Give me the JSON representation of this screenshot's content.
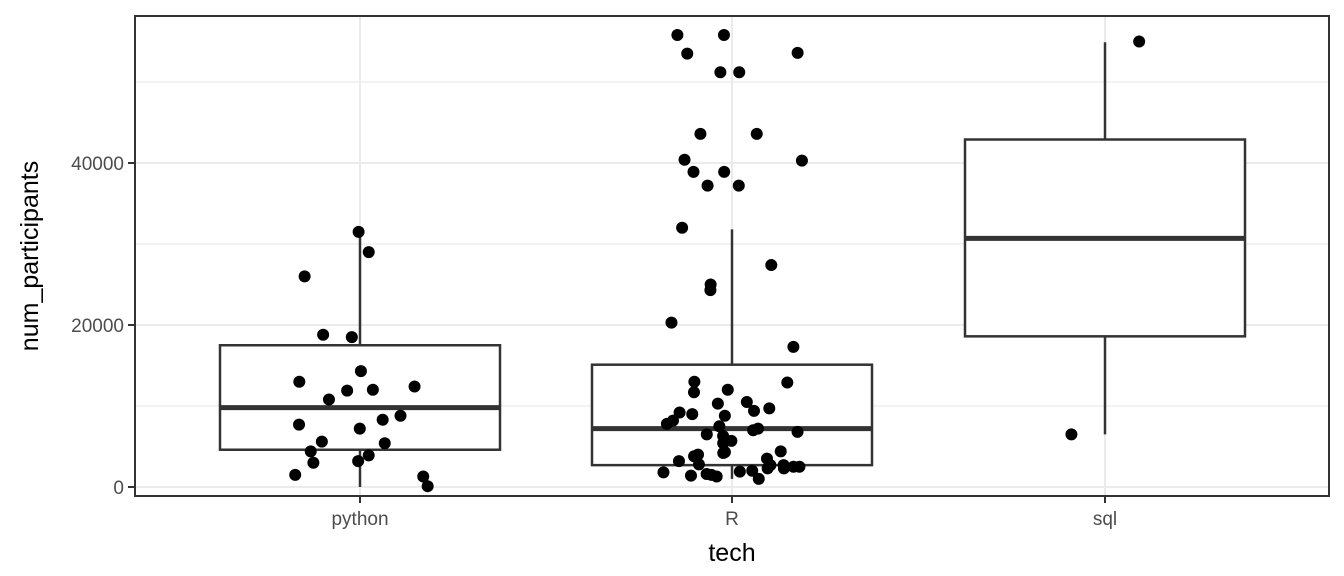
{
  "chart_data": {
    "type": "boxplot",
    "xlabel": "tech",
    "ylabel": "num_participants",
    "categories": [
      "python",
      "R",
      "sql"
    ],
    "ylim": [
      -1000,
      58000
    ],
    "yticks": [
      0,
      20000,
      40000
    ],
    "ytick_labels": [
      "0",
      "20000",
      "40000"
    ],
    "grid": true,
    "boxes": [
      {
        "category": "python",
        "min": 0,
        "q1": 4600,
        "median": 9800,
        "q3": 17500,
        "max": 31400
      },
      {
        "category": "R",
        "min": 1000,
        "q1": 2700,
        "median": 7200,
        "q3": 15100,
        "max": 31800
      },
      {
        "category": "sql",
        "min": 6500,
        "q1": 18600,
        "median": 30700,
        "q3": 42900,
        "max": 54900
      }
    ],
    "points": [
      {
        "category": "python",
        "values": [
          31500,
          29000,
          26000,
          18800,
          18500,
          14300,
          13000,
          12400,
          12000,
          11900,
          10800,
          8800,
          8300,
          7700,
          7200,
          5600,
          5400,
          4400,
          3900,
          3200,
          3000,
          1500,
          1300,
          100
        ]
      },
      {
        "category": "R",
        "values": [
          55800,
          55800,
          53600,
          53500,
          51200,
          51200,
          43600,
          43600,
          40400,
          40300,
          38900,
          38900,
          37200,
          37200,
          32000,
          27400,
          25000,
          24300,
          20300,
          17300,
          13000,
          12900,
          12000,
          11700,
          10500,
          10300,
          9700,
          9400,
          9200,
          9000,
          8800,
          8200,
          7800,
          7500,
          7200,
          7000,
          6800,
          6500,
          6300,
          5700,
          5400,
          4400,
          4300,
          4200,
          4000,
          3800,
          3500,
          3200,
          2800,
          2700,
          2700,
          2500,
          2500,
          2300,
          2300,
          2000,
          1900,
          1800,
          1600,
          1500,
          1400,
          1300,
          1000
        ]
      },
      {
        "category": "sql",
        "values": [
          55000,
          6500
        ]
      }
    ]
  }
}
